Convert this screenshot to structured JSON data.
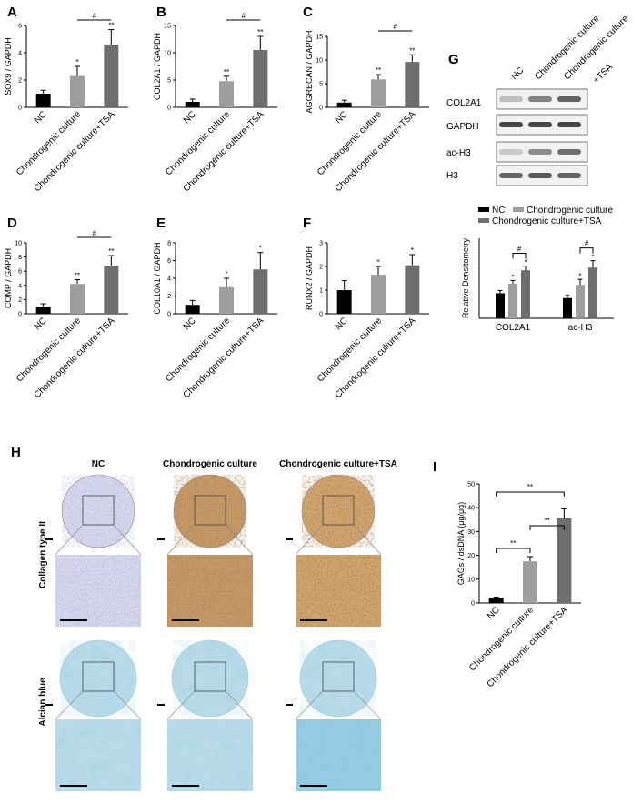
{
  "panels": [
    "A",
    "B",
    "C",
    "D",
    "E",
    "F",
    "G",
    "H",
    "I"
  ],
  "categories": [
    "NC",
    "Chondrogenic culture",
    "Chondrogenic culture+TSA"
  ],
  "colors": {
    "nc": "#000000",
    "chondro": "#9e9e9e",
    "tsa": "#6e6e6e"
  },
  "chart_data": [
    {
      "id": "A",
      "type": "bar",
      "ylabel": "SOX9 / GAPDH",
      "ylim": [
        0,
        6
      ],
      "yticks": [
        "0",
        "2",
        "4",
        "6"
      ],
      "values": [
        1.0,
        2.3,
        4.6
      ],
      "errors": [
        0.25,
        0.7,
        1.1
      ],
      "marks": [
        "",
        "*",
        "**"
      ],
      "bracket": "#"
    },
    {
      "id": "B",
      "type": "bar",
      "ylabel": "COL2A1 / GAPDH",
      "ylim": [
        0,
        15
      ],
      "yticks": [
        "0",
        "5",
        "10",
        "15"
      ],
      "values": [
        1.0,
        4.8,
        10.5
      ],
      "errors": [
        0.5,
        0.9,
        2.5
      ],
      "marks": [
        "",
        "**",
        "**"
      ],
      "bracket": "#"
    },
    {
      "id": "C",
      "type": "bar",
      "ylabel": "AGGRECAN / GAPDH",
      "ylim": [
        0,
        15
      ],
      "yticks": [
        "0",
        "5",
        "10",
        "15"
      ],
      "values": [
        1.0,
        5.9,
        9.6
      ],
      "errors": [
        0.5,
        1.0,
        1.5
      ],
      "marks": [
        "",
        "**",
        "**"
      ],
      "bracket": "#"
    },
    {
      "id": "D",
      "type": "bar",
      "ylabel": "COMP / GAPDH",
      "ylim": [
        0,
        10
      ],
      "yticks": [
        "0",
        "2",
        "4",
        "6",
        "8",
        "10"
      ],
      "values": [
        1.0,
        4.2,
        6.8
      ],
      "errors": [
        0.4,
        0.6,
        1.4
      ],
      "marks": [
        "",
        "**",
        "**"
      ],
      "bracket": "#"
    },
    {
      "id": "E",
      "type": "bar",
      "ylabel": "COL10A1 / GAPDH",
      "ylim": [
        0,
        8
      ],
      "yticks": [
        "0",
        "2",
        "4",
        "6",
        "8"
      ],
      "values": [
        1.0,
        3.0,
        5.0
      ],
      "errors": [
        0.5,
        1.0,
        1.9
      ],
      "marks": [
        "",
        "*",
        "*"
      ],
      "bracket": ""
    },
    {
      "id": "F",
      "type": "bar",
      "ylabel": "RUNX2 / GAPDH",
      "ylim": [
        0,
        3
      ],
      "yticks": [
        "0",
        "1",
        "2",
        "3"
      ],
      "values": [
        1.0,
        1.65,
        2.05
      ],
      "errors": [
        0.4,
        0.35,
        0.45
      ],
      "marks": [
        "",
        "*",
        "*"
      ],
      "bracket": ""
    },
    {
      "id": "G",
      "type": "bar",
      "ylabel": "Relative Densitometry",
      "ylim": [
        0,
        1.5
      ],
      "categories": [
        "COL2A1",
        "ac-H3"
      ],
      "series": [
        {
          "name": "NC",
          "values": [
            0.47,
            0.38
          ],
          "errors": [
            0.05,
            0.05
          ],
          "marks": [
            "",
            ""
          ]
        },
        {
          "name": "Chondrogenic culture",
          "values": [
            0.65,
            0.63
          ],
          "errors": [
            0.06,
            0.1
          ],
          "marks": [
            "*",
            "*"
          ]
        },
        {
          "name": "Chondrogenic culture+TSA",
          "values": [
            0.9,
            0.95
          ],
          "errors": [
            0.08,
            0.13
          ],
          "marks": [
            "*",
            "*"
          ]
        }
      ],
      "bracket": "#"
    },
    {
      "id": "I",
      "type": "bar",
      "ylabel": "GAGs / dsDNA (μg/μg)",
      "ylim": [
        0,
        50
      ],
      "yticks": [
        "0",
        "10",
        "20",
        "30",
        "40",
        "50"
      ],
      "values": [
        2.2,
        17.5,
        35.5
      ],
      "errors": [
        0.3,
        2.0,
        4.0
      ],
      "brackets": [
        "**",
        "**",
        "**"
      ]
    }
  ],
  "blot": {
    "headers": [
      "NC",
      "Chondrogenic culture",
      "Chondrogenic culture",
      "+TSA"
    ],
    "rows": [
      "COL2A1",
      "GAPDH",
      "ac-H3",
      "H3"
    ]
  },
  "histology": {
    "cols": [
      "NC",
      "Chondrogenic culture",
      "Chondrogenic culture+TSA"
    ],
    "rows": [
      "Collagen type II",
      "Alcian blue"
    ]
  }
}
